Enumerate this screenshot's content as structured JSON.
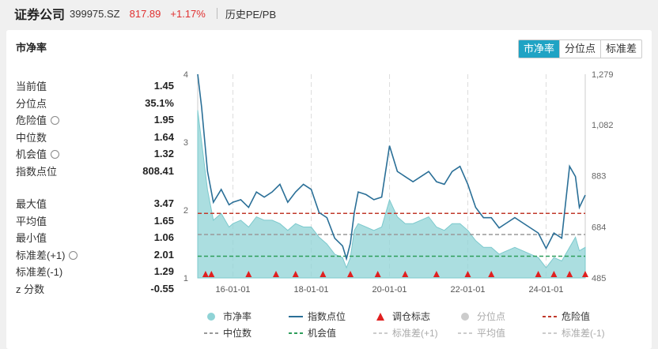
{
  "header": {
    "name": "证券公司",
    "code": "399975.SZ",
    "price": "817.89",
    "change": "+1.17%",
    "tab": "历史PE/PB"
  },
  "panel": {
    "title": "市净率",
    "buttons": [
      "市净率",
      "分位点",
      "标准差"
    ]
  },
  "stats": {
    "current": {
      "label": "当前值",
      "value": "1.45"
    },
    "percentile": {
      "label": "分位点",
      "value": "35.1%"
    },
    "danger": {
      "label": "危险值",
      "value": "1.95"
    },
    "median": {
      "label": "中位数",
      "value": "1.64"
    },
    "chance": {
      "label": "机会值",
      "value": "1.32"
    },
    "index": {
      "label": "指数点位",
      "value": "808.41"
    },
    "max": {
      "label": "最大值",
      "value": "3.47"
    },
    "mean": {
      "label": "平均值",
      "value": "1.65"
    },
    "min": {
      "label": "最小值",
      "value": "1.06"
    },
    "sd_plus": {
      "label": "标准差(+1)",
      "value": "2.01"
    },
    "sd_minus": {
      "label": "标准差(-1)",
      "value": "1.29"
    },
    "z": {
      "label": "z 分数",
      "value": "-0.55"
    }
  },
  "legend": [
    {
      "label": "市净率",
      "dim": false
    },
    {
      "label": "指数点位",
      "dim": false
    },
    {
      "label": "调仓标志",
      "dim": false
    },
    {
      "label": "分位点",
      "dim": true
    },
    {
      "label": "危险值",
      "dim": false
    },
    {
      "label": "中位数",
      "dim": false
    },
    {
      "label": "机会值",
      "dim": false
    },
    {
      "label": "标准差(+1)",
      "dim": true
    },
    {
      "label": "平均值",
      "dim": true
    },
    {
      "label": "标准差(-1)",
      "dim": true
    }
  ],
  "chart_data": {
    "type": "area",
    "x_ticks": [
      "16-01-01",
      "18-01-01",
      "20-01-01",
      "22-01-01",
      "24-01-01"
    ],
    "x_range": [
      2015.1,
      2025.0
    ],
    "y_left": {
      "range": [
        1,
        4
      ],
      "ticks": [
        "1",
        "2",
        "3",
        "4"
      ]
    },
    "y_right": {
      "range": [
        485,
        1279
      ],
      "ticks": [
        "485",
        "684",
        "883",
        "1,082",
        "1,279"
      ]
    },
    "reference_lines": {
      "danger": 1.95,
      "median": 1.64,
      "chance": 1.32
    },
    "pb_series": {
      "x": [
        2015.1,
        2015.2,
        2015.35,
        2015.5,
        2015.7,
        2015.9,
        2016.0,
        2016.2,
        2016.4,
        2016.6,
        2016.8,
        2017.0,
        2017.2,
        2017.4,
        2017.6,
        2017.8,
        2018.0,
        2018.2,
        2018.4,
        2018.6,
        2018.8,
        2018.9,
        2019.0,
        2019.1,
        2019.2,
        2019.4,
        2019.6,
        2019.8,
        2020.0,
        2020.2,
        2020.4,
        2020.6,
        2020.8,
        2021.0,
        2021.2,
        2021.4,
        2021.6,
        2021.8,
        2022.0,
        2022.2,
        2022.4,
        2022.6,
        2022.8,
        2023.0,
        2023.2,
        2023.4,
        2023.6,
        2023.8,
        2024.0,
        2024.2,
        2024.4,
        2024.6,
        2024.75,
        2024.85,
        2025.0
      ],
      "y": [
        3.47,
        3.0,
        2.3,
        1.85,
        1.95,
        1.75,
        1.8,
        1.85,
        1.75,
        1.9,
        1.85,
        1.85,
        1.8,
        1.7,
        1.8,
        1.75,
        1.75,
        1.6,
        1.5,
        1.35,
        1.3,
        1.15,
        1.3,
        1.7,
        1.8,
        1.75,
        1.7,
        1.75,
        2.15,
        1.9,
        1.8,
        1.8,
        1.85,
        1.9,
        1.75,
        1.7,
        1.8,
        1.8,
        1.7,
        1.55,
        1.45,
        1.45,
        1.35,
        1.4,
        1.45,
        1.4,
        1.35,
        1.3,
        1.15,
        1.3,
        1.25,
        1.45,
        1.6,
        1.4,
        1.45
      ]
    },
    "index_series": {
      "x": [
        2015.1,
        2015.2,
        2015.35,
        2015.5,
        2015.7,
        2015.9,
        2016.0,
        2016.2,
        2016.4,
        2016.6,
        2016.8,
        2017.0,
        2017.2,
        2017.4,
        2017.6,
        2017.8,
        2018.0,
        2018.2,
        2018.4,
        2018.6,
        2018.8,
        2018.9,
        2019.0,
        2019.1,
        2019.2,
        2019.4,
        2019.6,
        2019.8,
        2020.0,
        2020.2,
        2020.4,
        2020.6,
        2020.8,
        2021.0,
        2021.2,
        2021.4,
        2021.6,
        2021.8,
        2022.0,
        2022.2,
        2022.4,
        2022.6,
        2022.8,
        2023.0,
        2023.2,
        2023.4,
        2023.6,
        2023.8,
        2024.0,
        2024.2,
        2024.4,
        2024.6,
        2024.75,
        2024.85,
        2025.0
      ],
      "y": [
        1279,
        1150,
        900,
        780,
        830,
        770,
        780,
        790,
        760,
        820,
        800,
        820,
        850,
        780,
        820,
        850,
        830,
        740,
        720,
        640,
        610,
        560,
        620,
        740,
        820,
        810,
        790,
        800,
        1000,
        900,
        880,
        860,
        880,
        900,
        860,
        850,
        900,
        920,
        850,
        760,
        720,
        720,
        680,
        700,
        720,
        700,
        680,
        660,
        600,
        660,
        640,
        920,
        880,
        760,
        808
      ]
    },
    "rebalance_marks_x": [
      2015.3,
      2015.45,
      2016.4,
      2017.1,
      2017.6,
      2018.3,
      2019.0,
      2019.7,
      2020.4,
      2021.2,
      2022.0,
      2022.6,
      2023.8,
      2024.2,
      2024.6,
      2025.0
    ]
  }
}
